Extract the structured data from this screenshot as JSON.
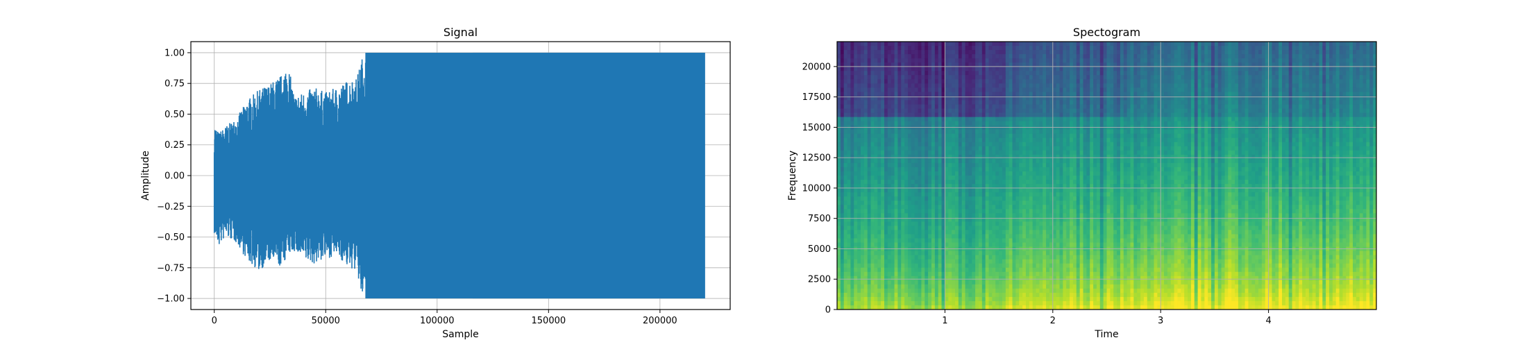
{
  "chart_data": [
    {
      "type": "line",
      "title": "Signal",
      "xlabel": "Sample",
      "ylabel": "Amplitude",
      "xlim": [
        -10500,
        231500
      ],
      "ylim": [
        -1.09,
        1.09
      ],
      "grid": true,
      "x_ticks": [
        0,
        50000,
        100000,
        150000,
        200000
      ],
      "x_tick_labels": [
        "0",
        "50000",
        "100000",
        "150000",
        "200000"
      ],
      "y_ticks": [
        1.0,
        0.75,
        0.5,
        0.25,
        0.0,
        -0.25,
        -0.5,
        -0.75,
        -1.0
      ],
      "y_tick_labels": [
        "1.00",
        "0.75",
        "0.50",
        "0.25",
        "0.00",
        "−0.25",
        "−0.50",
        "−0.75",
        "−1.00"
      ],
      "series_color": "#1f77b4",
      "envelope": {
        "x": [
          0,
          2000,
          5000,
          10000,
          15000,
          20000,
          25000,
          30000,
          33000,
          36000,
          40000,
          45000,
          50000,
          55000,
          60000,
          64000,
          66000,
          68000,
          70000,
          75000,
          80000,
          85000,
          90000,
          95000,
          100000,
          105000,
          110000,
          114000,
          116000,
          120000,
          140000,
          160000,
          180000,
          200000,
          220000
        ],
        "upper": [
          0.42,
          0.35,
          0.4,
          0.47,
          0.62,
          0.7,
          0.75,
          0.82,
          0.92,
          0.65,
          0.68,
          0.72,
          0.68,
          0.72,
          0.78,
          0.8,
          0.95,
          1.0,
          1.0,
          1.0,
          1.0,
          1.0,
          1.0,
          1.0,
          1.0,
          1.0,
          1.0,
          1.0,
          1.0,
          1.0,
          1.0,
          1.0,
          1.0,
          1.0,
          1.0
        ],
        "lower": [
          -0.48,
          -0.58,
          -0.5,
          -0.55,
          -0.7,
          -0.78,
          -0.7,
          -0.75,
          -0.65,
          -0.62,
          -0.7,
          -0.72,
          -0.68,
          -0.65,
          -0.75,
          -0.78,
          -1.0,
          -1.0,
          -1.0,
          -1.0,
          -1.0,
          -1.0,
          -1.0,
          -1.0,
          -1.0,
          -1.0,
          -1.0,
          -1.0,
          -1.0,
          -1.0,
          -1.0,
          -1.0,
          -1.0,
          -1.0,
          -1.0
        ]
      }
    },
    {
      "type": "heatmap",
      "title": "Spectogram",
      "xlabel": "Time",
      "ylabel": "Frequency",
      "xlim": [
        0,
        5.0
      ],
      "ylim": [
        0,
        22050
      ],
      "grid": true,
      "x_ticks": [
        1,
        2,
        3,
        4
      ],
      "x_tick_labels": [
        "1",
        "2",
        "3",
        "4"
      ],
      "y_ticks": [
        0,
        2500,
        5000,
        7500,
        10000,
        12500,
        15000,
        17500,
        20000
      ],
      "y_tick_labels": [
        "0",
        "2500",
        "5000",
        "7500",
        "10000",
        "12500",
        "15000",
        "17500",
        "20000"
      ],
      "colormap": "viridis",
      "time_segments": [
        {
          "t0": 0.0,
          "t1": 1.55,
          "level": 0.0
        },
        {
          "t0": 1.55,
          "t1": 1.85,
          "level": 0.35
        },
        {
          "t0": 1.85,
          "t1": 2.7,
          "level": 0.45
        },
        {
          "t0": 2.7,
          "t1": 5.0,
          "level": 0.75
        }
      ],
      "cutoff_frequency": 16000
    }
  ]
}
